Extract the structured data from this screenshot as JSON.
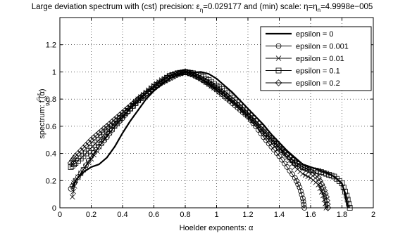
{
  "chart_data": {
    "type": "line",
    "title": "Large deviation spectrum with (cst) precision: ε",
    "title_sub1": "η",
    "title_mid": "=0.029177 and (min) scale: η=η",
    "title_sub2": "n",
    "title_end": "=4.9998e−005",
    "xlabel": "Hoelder exponents: α",
    "ylabel_main": "spectrum: f",
    "ylabel_sup": "G,ε",
    "ylabel_sub": "g",
    "ylabel_subsub": "n",
    "ylabel_subsub2": "η",
    "ylabel_end": "(α)",
    "xlim": [
      0,
      2
    ],
    "ylim": [
      0,
      1.4
    ],
    "x_ticks": [
      0,
      0.2,
      0.4,
      0.6,
      0.8,
      1,
      1.2,
      1.4,
      1.6,
      1.8,
      2
    ],
    "y_ticks": [
      0,
      0.2,
      0.4,
      0.6,
      0.8,
      1,
      1.2
    ],
    "x_tick_labels": [
      "0",
      "0.2",
      "0.4",
      "0.6",
      "0.8",
      "1",
      "1.2",
      "1.4",
      "1.6",
      "1.8",
      "2"
    ],
    "y_tick_labels": [
      "0",
      "0.2",
      "0.4",
      "0.6",
      "0.8",
      "1",
      "1.2"
    ],
    "grid": true,
    "legend_position": "top-right",
    "series": [
      {
        "name": "epsilon = 0",
        "marker": "none",
        "points": [
          [
            0.08,
            0.15
          ],
          [
            0.1,
            0.2
          ],
          [
            0.13,
            0.24
          ],
          [
            0.16,
            0.27
          ],
          [
            0.2,
            0.3
          ],
          [
            0.25,
            0.32
          ],
          [
            0.3,
            0.37
          ],
          [
            0.35,
            0.45
          ],
          [
            0.4,
            0.55
          ],
          [
            0.45,
            0.64
          ],
          [
            0.5,
            0.72
          ],
          [
            0.55,
            0.8
          ],
          [
            0.6,
            0.86
          ],
          [
            0.65,
            0.91
          ],
          [
            0.7,
            0.95
          ],
          [
            0.75,
            0.98
          ],
          [
            0.8,
            1.0
          ],
          [
            0.85,
            0.995
          ],
          [
            0.9,
            1.0
          ],
          [
            0.95,
            0.985
          ],
          [
            1.0,
            0.95
          ],
          [
            1.05,
            0.9
          ],
          [
            1.1,
            0.85
          ],
          [
            1.15,
            0.79
          ],
          [
            1.2,
            0.73
          ],
          [
            1.25,
            0.67
          ],
          [
            1.3,
            0.61
          ],
          [
            1.35,
            0.54
          ],
          [
            1.4,
            0.48
          ],
          [
            1.45,
            0.42
          ],
          [
            1.5,
            0.37
          ],
          [
            1.55,
            0.32
          ],
          [
            1.6,
            0.3
          ],
          [
            1.65,
            0.28
          ],
          [
            1.7,
            0.26
          ],
          [
            1.75,
            0.23
          ],
          [
            1.8,
            0.18
          ],
          [
            1.82,
            0.1
          ],
          [
            1.84,
            0.0
          ]
        ]
      },
      {
        "name": "epsilon = 0.001",
        "marker": "circle",
        "points": [
          [
            0.07,
            0.14
          ],
          [
            0.1,
            0.2
          ],
          [
            0.15,
            0.28
          ],
          [
            0.2,
            0.38
          ],
          [
            0.25,
            0.45
          ],
          [
            0.3,
            0.52
          ],
          [
            0.35,
            0.6
          ],
          [
            0.4,
            0.66
          ],
          [
            0.45,
            0.73
          ],
          [
            0.5,
            0.79
          ],
          [
            0.55,
            0.84
          ],
          [
            0.6,
            0.89
          ],
          [
            0.65,
            0.93
          ],
          [
            0.7,
            0.97
          ],
          [
            0.75,
            0.99
          ],
          [
            0.8,
            1.0
          ],
          [
            0.85,
            0.98
          ],
          [
            0.9,
            0.95
          ],
          [
            0.95,
            0.91
          ],
          [
            1.0,
            0.87
          ],
          [
            1.05,
            0.82
          ],
          [
            1.1,
            0.77
          ],
          [
            1.15,
            0.72
          ],
          [
            1.2,
            0.67
          ],
          [
            1.25,
            0.6
          ],
          [
            1.3,
            0.52
          ],
          [
            1.35,
            0.45
          ],
          [
            1.4,
            0.38
          ],
          [
            1.45,
            0.3
          ],
          [
            1.5,
            0.22
          ],
          [
            1.53,
            0.15
          ],
          [
            1.55,
            0.07
          ],
          [
            1.56,
            0.0
          ]
        ]
      },
      {
        "name": "epsilon = 0.01",
        "marker": "x",
        "points": [
          [
            0.08,
            0.08
          ],
          [
            0.1,
            0.2
          ],
          [
            0.15,
            0.28
          ],
          [
            0.2,
            0.36
          ],
          [
            0.25,
            0.45
          ],
          [
            0.3,
            0.53
          ],
          [
            0.35,
            0.6
          ],
          [
            0.4,
            0.67
          ],
          [
            0.45,
            0.74
          ],
          [
            0.5,
            0.8
          ],
          [
            0.55,
            0.85
          ],
          [
            0.6,
            0.9
          ],
          [
            0.65,
            0.94
          ],
          [
            0.7,
            0.97
          ],
          [
            0.75,
            0.99
          ],
          [
            0.8,
            1.0
          ],
          [
            0.85,
            0.98
          ],
          [
            0.9,
            0.95
          ],
          [
            0.95,
            0.91
          ],
          [
            1.0,
            0.87
          ],
          [
            1.05,
            0.82
          ],
          [
            1.1,
            0.78
          ],
          [
            1.15,
            0.73
          ],
          [
            1.2,
            0.68
          ],
          [
            1.25,
            0.62
          ],
          [
            1.3,
            0.56
          ],
          [
            1.35,
            0.5
          ],
          [
            1.4,
            0.44
          ],
          [
            1.45,
            0.37
          ],
          [
            1.5,
            0.3
          ],
          [
            1.55,
            0.25
          ],
          [
            1.6,
            0.22
          ],
          [
            1.65,
            0.17
          ],
          [
            1.68,
            0.09
          ],
          [
            1.7,
            0.0
          ]
        ]
      },
      {
        "name": "epsilon = 0.1",
        "marker": "square",
        "points": [
          [
            0.07,
            0.3
          ],
          [
            0.1,
            0.33
          ],
          [
            0.15,
            0.38
          ],
          [
            0.2,
            0.44
          ],
          [
            0.25,
            0.5
          ],
          [
            0.3,
            0.56
          ],
          [
            0.35,
            0.62
          ],
          [
            0.4,
            0.68
          ],
          [
            0.45,
            0.73
          ],
          [
            0.5,
            0.79
          ],
          [
            0.55,
            0.84
          ],
          [
            0.6,
            0.89
          ],
          [
            0.65,
            0.93
          ],
          [
            0.7,
            0.97
          ],
          [
            0.75,
            0.99
          ],
          [
            0.8,
            1.0
          ],
          [
            0.85,
            0.99
          ],
          [
            0.9,
            0.97
          ],
          [
            0.95,
            0.94
          ],
          [
            1.0,
            0.9
          ],
          [
            1.05,
            0.86
          ],
          [
            1.1,
            0.81
          ],
          [
            1.15,
            0.76
          ],
          [
            1.2,
            0.7
          ],
          [
            1.25,
            0.64
          ],
          [
            1.3,
            0.57
          ],
          [
            1.35,
            0.51
          ],
          [
            1.4,
            0.45
          ],
          [
            1.45,
            0.39
          ],
          [
            1.5,
            0.33
          ],
          [
            1.55,
            0.3
          ],
          [
            1.6,
            0.28
          ],
          [
            1.65,
            0.27
          ],
          [
            1.7,
            0.25
          ],
          [
            1.75,
            0.23
          ],
          [
            1.8,
            0.18
          ],
          [
            1.83,
            0.09
          ],
          [
            1.85,
            0.0
          ]
        ]
      },
      {
        "name": "epsilon = 0.2",
        "marker": "diamond",
        "points": [
          [
            0.07,
            0.33
          ],
          [
            0.1,
            0.38
          ],
          [
            0.15,
            0.44
          ],
          [
            0.2,
            0.5
          ],
          [
            0.25,
            0.55
          ],
          [
            0.3,
            0.6
          ],
          [
            0.35,
            0.65
          ],
          [
            0.4,
            0.7
          ],
          [
            0.45,
            0.75
          ],
          [
            0.5,
            0.8
          ],
          [
            0.55,
            0.84
          ],
          [
            0.6,
            0.88
          ],
          [
            0.65,
            0.92
          ],
          [
            0.7,
            0.95
          ],
          [
            0.75,
            0.98
          ],
          [
            0.8,
            1.0
          ],
          [
            0.85,
            0.98
          ],
          [
            0.9,
            0.95
          ],
          [
            0.95,
            0.92
          ],
          [
            1.0,
            0.88
          ],
          [
            1.05,
            0.84
          ],
          [
            1.1,
            0.79
          ],
          [
            1.15,
            0.74
          ],
          [
            1.2,
            0.68
          ],
          [
            1.25,
            0.62
          ],
          [
            1.3,
            0.56
          ],
          [
            1.35,
            0.5
          ],
          [
            1.4,
            0.44
          ],
          [
            1.45,
            0.39
          ],
          [
            1.5,
            0.34
          ],
          [
            1.55,
            0.3
          ],
          [
            1.6,
            0.27
          ],
          [
            1.65,
            0.22
          ],
          [
            1.68,
            0.15
          ],
          [
            1.7,
            0.08
          ],
          [
            1.71,
            0.0
          ]
        ]
      }
    ]
  }
}
